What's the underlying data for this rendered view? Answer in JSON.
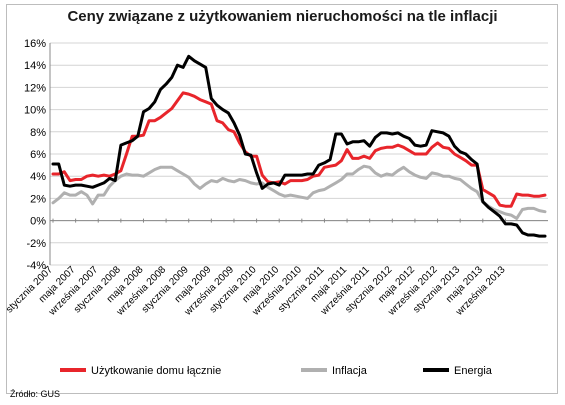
{
  "chart_data": {
    "type": "line",
    "title": "Ceny związane z użytkowaniem nieruchomości na tle inflacji",
    "source": "Źródło: GUS",
    "ylim": [
      -4,
      16
    ],
    "yticks": [
      "-4%",
      "-2%",
      "0%",
      "2%",
      "4%",
      "6%",
      "8%",
      "10%",
      "12%",
      "14%",
      "16%"
    ],
    "grid": true,
    "legend_position": "bottom",
    "x_tick_labels": [
      "stycznia 2007",
      "maja 2007",
      "września 2007",
      "stycznia 2008",
      "maja 2008",
      "września 2008",
      "stycznia 2009",
      "maja 2009",
      "września 2009",
      "stycznia 2010",
      "maja 2010",
      "września 2010",
      "stycznia 2011",
      "maja 2011",
      "września 2011",
      "stycznia 2012",
      "maja 2012",
      "września 2012",
      "stycznia 2013",
      "maja 2013",
      "września 2013"
    ],
    "series": [
      {
        "name": "Użytkowanie domu łącznie",
        "color": "#e8252b",
        "values": [
          4.2,
          4.2,
          4.4,
          3.6,
          3.7,
          3.7,
          4.0,
          4.1,
          4.0,
          4.1,
          4.0,
          4.2,
          4.5,
          6.0,
          7.6,
          7.6,
          7.7,
          9.0,
          9.0,
          9.3,
          9.7,
          10.1,
          10.8,
          11.5,
          11.4,
          11.2,
          10.9,
          10.7,
          10.5,
          9.0,
          8.8,
          8.2,
          8.0,
          7.0,
          6.2,
          5.8,
          5.8,
          4.1,
          3.5,
          3.4,
          3.5,
          3.3,
          3.6,
          3.6,
          3.6,
          3.7,
          4.0,
          4.1,
          4.8,
          4.9,
          5.0,
          5.4,
          6.4,
          5.6,
          5.6,
          5.8,
          5.6,
          6.3,
          6.5,
          6.6,
          6.6,
          6.8,
          6.6,
          6.3,
          6.0,
          6.0,
          6.0,
          6.6,
          7.0,
          6.6,
          6.5,
          6.0,
          5.7,
          5.4,
          5.0,
          5.0,
          2.8,
          2.5,
          2.2,
          1.4,
          1.3,
          1.3,
          2.4,
          2.3,
          2.3,
          2.2,
          2.2,
          2.3
        ]
      },
      {
        "name": "Inflacja",
        "color": "#b0b0b0",
        "values": [
          1.6,
          2.0,
          2.5,
          2.3,
          2.3,
          2.6,
          2.3,
          1.5,
          2.3,
          2.3,
          3.1,
          3.6,
          4.0,
          4.2,
          4.1,
          4.1,
          4.0,
          4.3,
          4.6,
          4.8,
          4.8,
          4.8,
          4.5,
          4.2,
          3.9,
          3.3,
          2.9,
          3.3,
          3.6,
          3.5,
          3.8,
          3.6,
          3.5,
          3.7,
          3.6,
          3.4,
          3.3,
          3.4,
          3.0,
          2.7,
          2.4,
          2.2,
          2.3,
          2.2,
          2.1,
          2.0,
          2.5,
          2.7,
          2.8,
          3.1,
          3.4,
          3.7,
          4.2,
          4.2,
          4.6,
          4.9,
          4.8,
          4.3,
          4.0,
          4.2,
          4.1,
          4.5,
          4.8,
          4.4,
          4.1,
          3.9,
          3.8,
          4.3,
          4.2,
          4.0,
          4.0,
          3.8,
          3.7,
          3.3,
          2.9,
          2.6,
          1.7,
          1.3,
          1.0,
          0.8,
          0.6,
          0.5,
          0.2,
          1.0,
          1.1,
          1.1,
          0.9,
          0.8
        ]
      },
      {
        "name": "Energia",
        "color": "#000000",
        "values": [
          5.1,
          5.1,
          3.2,
          3.1,
          3.2,
          3.2,
          3.1,
          3.0,
          3.2,
          3.4,
          3.8,
          3.6,
          6.8,
          7.0,
          7.2,
          7.6,
          9.8,
          10.1,
          10.7,
          11.8,
          12.3,
          12.9,
          14.0,
          13.8,
          14.8,
          14.4,
          14.1,
          13.8,
          11.0,
          10.4,
          10.0,
          9.7,
          8.8,
          7.7,
          6.0,
          5.9,
          4.3,
          2.9,
          3.3,
          3.4,
          3.2,
          4.1,
          4.1,
          4.1,
          4.1,
          4.2,
          4.2,
          5.0,
          5.2,
          5.5,
          7.8,
          7.8,
          6.9,
          7.1,
          7.1,
          7.2,
          6.7,
          7.5,
          7.9,
          7.9,
          7.8,
          7.9,
          7.6,
          7.4,
          6.8,
          6.7,
          6.8,
          8.1,
          8.0,
          7.9,
          7.6,
          6.7,
          6.2,
          6.0,
          5.5,
          5.1,
          1.7,
          1.2,
          0.8,
          0.4,
          -0.3,
          -0.3,
          -0.4,
          -1.1,
          -1.3,
          -1.3,
          -1.4,
          -1.4
        ]
      }
    ]
  }
}
